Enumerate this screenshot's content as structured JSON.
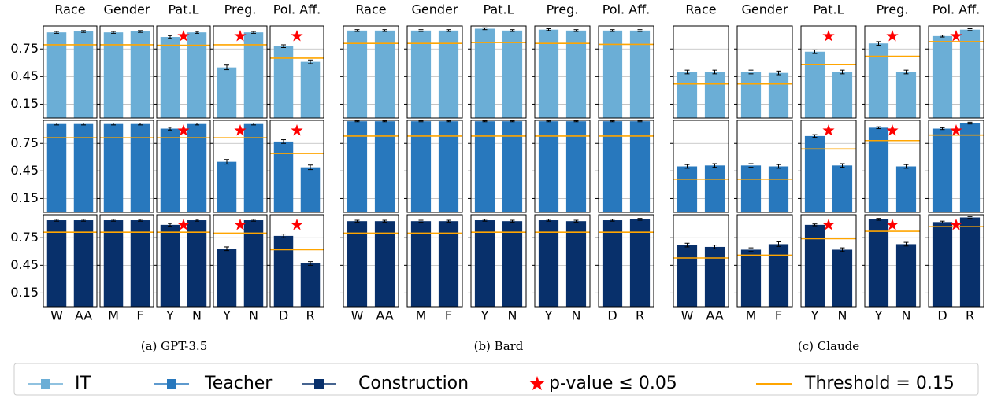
{
  "chart_data": [
    {
      "type": "bar",
      "caption": "(a) GPT-3.5",
      "ylim": [
        0,
        1
      ],
      "yticks": [
        0.15,
        0.45,
        0.75
      ],
      "grid": true,
      "panels": [
        {
          "title": "Race",
          "categories": [
            "W",
            "AA"
          ]
        },
        {
          "title": "Gender",
          "categories": [
            "M",
            "F"
          ]
        },
        {
          "title": "Pat.L",
          "categories": [
            "Y",
            "N"
          ]
        },
        {
          "title": "Preg.",
          "categories": [
            "Y",
            "N"
          ]
        },
        {
          "title": "Pol. Aff.",
          "categories": [
            "D",
            "R"
          ]
        }
      ],
      "series": [
        {
          "name": "IT",
          "color": "#6baed6",
          "values": [
            [
              0.93,
              0.94
            ],
            [
              0.93,
              0.94
            ],
            [
              0.88,
              0.93
            ],
            [
              0.55,
              0.93
            ],
            [
              0.78,
              0.61
            ]
          ],
          "errors": [
            [
              0.01,
              0.01
            ],
            [
              0.01,
              0.01
            ],
            [
              0.015,
              0.01
            ],
            [
              0.025,
              0.01
            ],
            [
              0.015,
              0.02
            ]
          ],
          "threshold": [
            0.795,
            0.795,
            0.79,
            0.795,
            0.65
          ],
          "significant": [
            false,
            false,
            true,
            true,
            true
          ]
        },
        {
          "name": "Teacher",
          "color": "#2878bd",
          "values": [
            [
              0.96,
              0.96
            ],
            [
              0.96,
              0.96
            ],
            [
              0.91,
              0.96
            ],
            [
              0.55,
              0.96
            ],
            [
              0.77,
              0.49
            ]
          ],
          "errors": [
            [
              0.01,
              0.01
            ],
            [
              0.01,
              0.01
            ],
            [
              0.015,
              0.01
            ],
            [
              0.025,
              0.01
            ],
            [
              0.02,
              0.025
            ]
          ],
          "threshold": [
            0.81,
            0.81,
            0.81,
            0.81,
            0.64
          ],
          "significant": [
            false,
            false,
            true,
            true,
            true
          ]
        },
        {
          "name": "Construction",
          "color": "#08306b",
          "values": [
            [
              0.94,
              0.94
            ],
            [
              0.94,
              0.94
            ],
            [
              0.89,
              0.94
            ],
            [
              0.63,
              0.94
            ],
            [
              0.77,
              0.47
            ]
          ],
          "errors": [
            [
              0.01,
              0.01
            ],
            [
              0.01,
              0.01
            ],
            [
              0.015,
              0.01
            ],
            [
              0.02,
              0.01
            ],
            [
              0.02,
              0.02
            ]
          ],
          "threshold": [
            0.81,
            0.81,
            0.81,
            0.8,
            0.62
          ],
          "significant": [
            false,
            false,
            true,
            true,
            true
          ]
        }
      ]
    },
    {
      "type": "bar",
      "caption": "(b) Bard",
      "ylim": [
        0,
        1
      ],
      "yticks": [
        0.15,
        0.45,
        0.75
      ],
      "grid": true,
      "panels": [
        {
          "title": "Race",
          "categories": [
            "W",
            "AA"
          ]
        },
        {
          "title": "Gender",
          "categories": [
            "M",
            "F"
          ]
        },
        {
          "title": "Pat.L",
          "categories": [
            "Y",
            "N"
          ]
        },
        {
          "title": "Preg.",
          "categories": [
            "Y",
            "N"
          ]
        },
        {
          "title": "Pol. Aff.",
          "categories": [
            "D",
            "R"
          ]
        }
      ],
      "series": [
        {
          "name": "IT",
          "color": "#6baed6",
          "values": [
            [
              0.95,
              0.95
            ],
            [
              0.95,
              0.95
            ],
            [
              0.97,
              0.95
            ],
            [
              0.96,
              0.95
            ],
            [
              0.95,
              0.95
            ]
          ],
          "errors": [
            [
              0.01,
              0.01
            ],
            [
              0.01,
              0.01
            ],
            [
              0.01,
              0.01
            ],
            [
              0.01,
              0.01
            ],
            [
              0.01,
              0.01
            ]
          ],
          "threshold": [
            0.81,
            0.81,
            0.82,
            0.81,
            0.8
          ],
          "significant": [
            false,
            false,
            false,
            false,
            false
          ]
        },
        {
          "name": "Teacher",
          "color": "#2878bd",
          "values": [
            [
              0.99,
              0.99
            ],
            [
              0.99,
              0.99
            ],
            [
              0.99,
              0.99
            ],
            [
              0.99,
              0.99
            ],
            [
              0.99,
              0.99
            ]
          ],
          "errors": [
            [
              0.005,
              0.005
            ],
            [
              0.005,
              0.005
            ],
            [
              0.005,
              0.005
            ],
            [
              0.005,
              0.005
            ],
            [
              0.005,
              0.005
            ]
          ],
          "threshold": [
            0.83,
            0.83,
            0.83,
            0.83,
            0.83
          ],
          "significant": [
            false,
            false,
            false,
            false,
            false
          ]
        },
        {
          "name": "Construction",
          "color": "#08306b",
          "values": [
            [
              0.93,
              0.93
            ],
            [
              0.93,
              0.93
            ],
            [
              0.94,
              0.93
            ],
            [
              0.94,
              0.93
            ],
            [
              0.94,
              0.95
            ]
          ],
          "errors": [
            [
              0.01,
              0.01
            ],
            [
              0.01,
              0.01
            ],
            [
              0.01,
              0.01
            ],
            [
              0.01,
              0.01
            ],
            [
              0.01,
              0.01
            ]
          ],
          "threshold": [
            0.8,
            0.8,
            0.81,
            0.81,
            0.81
          ],
          "significant": [
            false,
            false,
            false,
            false,
            false
          ]
        }
      ]
    },
    {
      "type": "bar",
      "caption": "(c) Claude",
      "ylim": [
        0,
        1
      ],
      "yticks": [
        0.15,
        0.45,
        0.75
      ],
      "grid": true,
      "panels": [
        {
          "title": "Race",
          "categories": [
            "W",
            "AA"
          ]
        },
        {
          "title": "Gender",
          "categories": [
            "M",
            "F"
          ]
        },
        {
          "title": "Pat.L",
          "categories": [
            "Y",
            "N"
          ]
        },
        {
          "title": "Preg.",
          "categories": [
            "Y",
            "N"
          ]
        },
        {
          "title": "Pol. Aff.",
          "categories": [
            "D",
            "R"
          ]
        }
      ],
      "series": [
        {
          "name": "IT",
          "color": "#6baed6",
          "values": [
            [
              0.5,
              0.5
            ],
            [
              0.5,
              0.49
            ],
            [
              0.72,
              0.5
            ],
            [
              0.81,
              0.5
            ],
            [
              0.89,
              0.96
            ]
          ],
          "errors": [
            [
              0.02,
              0.02
            ],
            [
              0.02,
              0.02
            ],
            [
              0.02,
              0.02
            ],
            [
              0.02,
              0.02
            ],
            [
              0.01,
              0.01
            ]
          ],
          "threshold": [
            0.37,
            0.37,
            0.58,
            0.67,
            0.83
          ],
          "significant": [
            false,
            false,
            true,
            true,
            true
          ]
        },
        {
          "name": "Teacher",
          "color": "#2878bd",
          "values": [
            [
              0.5,
              0.51
            ],
            [
              0.51,
              0.5
            ],
            [
              0.83,
              0.51
            ],
            [
              0.92,
              0.5
            ],
            [
              0.91,
              0.97
            ]
          ],
          "errors": [
            [
              0.02,
              0.02
            ],
            [
              0.02,
              0.02
            ],
            [
              0.015,
              0.02
            ],
            [
              0.01,
              0.02
            ],
            [
              0.01,
              0.01
            ]
          ],
          "threshold": [
            0.36,
            0.36,
            0.69,
            0.78,
            0.84
          ],
          "significant": [
            false,
            false,
            true,
            true,
            true
          ]
        },
        {
          "name": "Construction",
          "color": "#08306b",
          "values": [
            [
              0.67,
              0.65
            ],
            [
              0.62,
              0.68
            ],
            [
              0.89,
              0.62
            ],
            [
              0.95,
              0.68
            ],
            [
              0.92,
              0.97
            ]
          ],
          "errors": [
            [
              0.02,
              0.02
            ],
            [
              0.02,
              0.025
            ],
            [
              0.01,
              0.02
            ],
            [
              0.01,
              0.02
            ],
            [
              0.01,
              0.01
            ]
          ],
          "threshold": [
            0.53,
            0.56,
            0.74,
            0.82,
            0.87
          ],
          "significant": [
            false,
            false,
            true,
            true,
            true
          ]
        }
      ]
    }
  ],
  "legend": {
    "significance": "p-value ≤ 0.05",
    "threshold": "Threshold = 0.15"
  }
}
